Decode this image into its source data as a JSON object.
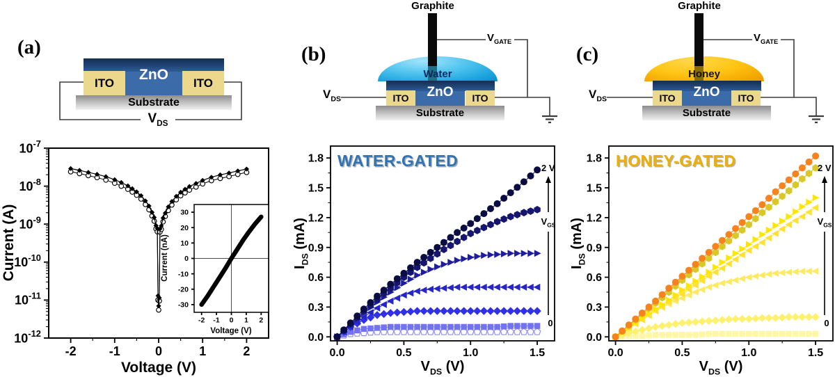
{
  "figure": {
    "panels": [
      {
        "id": "a",
        "label": "(a)"
      },
      {
        "id": "b",
        "label": "(b)"
      },
      {
        "id": "c",
        "label": "(c)"
      }
    ],
    "schematics": {
      "a": {
        "zno": "ZnO",
        "ito_left": "ITO",
        "ito_right": "ITO",
        "substrate": "Substrate",
        "vds": {
          "main": "V",
          "sub": "DS"
        }
      },
      "b": {
        "graphite": "Graphite",
        "liquid": "Water",
        "zno": "ZnO",
        "ito_left": "ITO",
        "ito_right": "ITO",
        "substrate": "Substrate",
        "vds": {
          "main": "V",
          "sub": "DS"
        },
        "vgate": {
          "main": "V",
          "sub": "GATE"
        },
        "liquid_color": "#29a9e0",
        "label_color": "#0a2a5e"
      },
      "c": {
        "graphite": "Graphite",
        "liquid": "Honey",
        "zno": "ZnO",
        "ito_left": "ITO",
        "ito_right": "ITO",
        "substrate": "Substrate",
        "vds": {
          "main": "V",
          "sub": "DS"
        },
        "vgate": {
          "main": "V",
          "sub": "GATE"
        },
        "liquid_color": "#f7b500",
        "label_color": "#171200"
      }
    }
  },
  "chart_data": [
    {
      "id": "a_main",
      "type": "scatter",
      "ylog": true,
      "title": "",
      "xlabel": {
        "main": "Voltage (V)"
      },
      "ylabel": {
        "main": "Current (A)"
      },
      "xlim": [
        -2.5,
        2.5
      ],
      "ylim_exp": [
        -12,
        -7
      ],
      "xticks": [
        {
          "v": -2,
          "t": "-2"
        },
        {
          "v": -1,
          "t": "-1"
        },
        {
          "v": 0,
          "t": "0"
        },
        {
          "v": 1,
          "t": "1"
        },
        {
          "v": 2,
          "t": "2"
        }
      ],
      "yticks_exp": [
        -7,
        -8,
        -9,
        -10,
        -11,
        -12
      ],
      "minor": "mid",
      "grid": false,
      "legend": "none",
      "series": [
        {
          "name": "sweep-1",
          "shape": "diamond",
          "color": "#000000",
          "size": 3.1,
          "lw": 1.2,
          "points": [
            [
              -2,
              2.9e-08
            ],
            [
              -1.8,
              2.6e-08
            ],
            [
              -1.6,
              2.3e-08
            ],
            [
              -1.4,
              2.05e-08
            ],
            [
              -1.2,
              1.78e-08
            ],
            [
              -1.0,
              1.48e-08
            ],
            [
              -0.85,
              1.25e-08
            ],
            [
              -0.7,
              1.02e-08
            ],
            [
              -0.6,
              8.6e-09
            ],
            [
              -0.5,
              7.1e-09
            ],
            [
              -0.4,
              5.6e-09
            ],
            [
              -0.3,
              4.1e-09
            ],
            [
              -0.22,
              3e-09
            ],
            [
              -0.15,
              2.05e-09
            ],
            [
              -0.1,
              1.5e-09
            ],
            [
              -0.06,
              9.2e-10
            ],
            [
              -0.03,
              7.7e-10
            ],
            [
              -0.015,
              1.3e-11
            ],
            [
              0,
              7e-12
            ],
            [
              0.015,
              1.15e-11
            ],
            [
              0.03,
              7.5e-10
            ],
            [
              0.06,
              9e-10
            ],
            [
              0.1,
              1.45e-09
            ],
            [
              0.15,
              1.95e-09
            ],
            [
              0.22,
              2.85e-09
            ],
            [
              0.3,
              3.95e-09
            ],
            [
              0.4,
              5.4e-09
            ],
            [
              0.5,
              6.9e-09
            ],
            [
              0.6,
              8.3e-09
            ],
            [
              0.7,
              9.8e-09
            ],
            [
              0.85,
              1.18e-08
            ],
            [
              1.0,
              1.42e-08
            ],
            [
              1.2,
              1.72e-08
            ],
            [
              1.4,
              1.98e-08
            ],
            [
              1.6,
              2.22e-08
            ],
            [
              1.8,
              2.52e-08
            ],
            [
              2,
              2.82e-08
            ]
          ]
        },
        {
          "name": "sweep-2",
          "shape": "open-circle",
          "color": "#000000",
          "size": 3.3,
          "lw": 1.0,
          "points": [
            [
              -2,
              2.4e-08
            ],
            [
              -1.8,
              2.15e-08
            ],
            [
              -1.6,
              1.9e-08
            ],
            [
              -1.4,
              1.68e-08
            ],
            [
              -1.2,
              1.45e-08
            ],
            [
              -1.0,
              1.2e-08
            ],
            [
              -0.85,
              1e-08
            ],
            [
              -0.7,
              8.3e-09
            ],
            [
              -0.6,
              7e-09
            ],
            [
              -0.5,
              5.8e-09
            ],
            [
              -0.4,
              4.6e-09
            ],
            [
              -0.3,
              3.3e-09
            ],
            [
              -0.22,
              2.4e-09
            ],
            [
              -0.15,
              1.65e-09
            ],
            [
              -0.1,
              1.2e-09
            ],
            [
              -0.06,
              7.5e-10
            ],
            [
              -0.03,
              6.3e-10
            ],
            [
              -0.015,
              1e-11
            ],
            [
              0,
              5.5e-12
            ],
            [
              0.015,
              9.5e-12
            ],
            [
              0.03,
              6.2e-10
            ],
            [
              0.06,
              7.3e-10
            ],
            [
              0.1,
              1.15e-09
            ],
            [
              0.15,
              1.6e-09
            ],
            [
              0.22,
              2.3e-09
            ],
            [
              0.3,
              3.2e-09
            ],
            [
              0.4,
              4.4e-09
            ],
            [
              0.5,
              5.6e-09
            ],
            [
              0.6,
              6.7e-09
            ],
            [
              0.7,
              7.9e-09
            ],
            [
              0.85,
              9.5e-09
            ],
            [
              1.0,
              1.15e-08
            ],
            [
              1.2,
              1.4e-08
            ],
            [
              1.4,
              1.6e-08
            ],
            [
              1.6,
              1.8e-08
            ],
            [
              1.8,
              2.05e-08
            ],
            [
              2,
              2.3e-08
            ]
          ]
        }
      ]
    },
    {
      "id": "a_inset",
      "type": "line",
      "xlabel": {
        "main": "Voltage (V)"
      },
      "ylabel": {
        "main": "Current (nA)"
      },
      "xlim": [
        -2.5,
        2.5
      ],
      "ylim": [
        -35,
        35
      ],
      "xticks": [
        {
          "v": -2,
          "t": "-2"
        },
        {
          "v": -1,
          "t": "-1"
        },
        {
          "v": 0,
          "t": "0"
        },
        {
          "v": 1,
          "t": "1"
        },
        {
          "v": 2,
          "t": "2"
        }
      ],
      "yticks": [
        {
          "v": 30,
          "t": "30"
        },
        {
          "v": 20,
          "t": "20"
        },
        {
          "v": 10,
          "t": "10"
        },
        {
          "v": 0,
          "t": "0"
        },
        {
          "v": -10,
          "t": "-10"
        },
        {
          "v": -20,
          "t": "-20"
        },
        {
          "v": -30,
          "t": "-30"
        }
      ],
      "crosshair": true,
      "grid": false,
      "legend": "none",
      "series": [
        {
          "name": "iv-linear",
          "shape": "none",
          "color": "#000000",
          "lw": 6.5,
          "points": [
            [
              -2,
              -30
            ],
            [
              -1.6,
              -24.5
            ],
            [
              -1.2,
              -18.5
            ],
            [
              -0.8,
              -12.5
            ],
            [
              -0.4,
              -6.5
            ],
            [
              0,
              0
            ],
            [
              0.4,
              6
            ],
            [
              0.8,
              12
            ],
            [
              1.2,
              17.5
            ],
            [
              1.6,
              22.5
            ],
            [
              2,
              27
            ]
          ]
        }
      ]
    },
    {
      "id": "b_out",
      "type": "scatter",
      "title": "WATER-GATED",
      "title_color": "#2e74b5",
      "title_shadow": "#aeaeae",
      "xlabel": {
        "main": "V",
        "sub": "DS",
        "rest": " (V)"
      },
      "ylabel": {
        "main": "I",
        "sub": "DS",
        "rest": " (mA)"
      },
      "xlim": [
        -0.05,
        1.63
      ],
      "ylim": [
        -0.04,
        1.92
      ],
      "xticks": [
        {
          "v": 0,
          "t": "0.0"
        },
        {
          "v": 0.5,
          "t": "0.5"
        },
        {
          "v": 1,
          "t": "1.0"
        },
        {
          "v": 1.5,
          "t": "1.5"
        }
      ],
      "yticks": [
        {
          "v": 0,
          "t": "0.0"
        },
        {
          "v": 0.3,
          "t": "0.3"
        },
        {
          "v": 0.6,
          "t": "0.6"
        },
        {
          "v": 0.9,
          "t": "0.9"
        },
        {
          "v": 1.2,
          "t": "1.2"
        },
        {
          "v": 1.5,
          "t": "1.5"
        },
        {
          "v": 1.8,
          "t": "1.8"
        }
      ],
      "minor": "mid",
      "grid": false,
      "legend": "none",
      "gate": {
        "top": "2 V",
        "bottom": "0",
        "vmain": "V",
        "vsub": "GS"
      },
      "x_start": 0,
      "x_step": 0.1,
      "series": [
        {
          "name": "vgs-highest-2V",
          "shape": "circle",
          "color": "#0c0c45",
          "dense": true,
          "values": [
            0.0,
            0.14,
            0.28,
            0.41,
            0.53,
            0.64,
            0.75,
            0.85,
            0.95,
            1.05,
            1.14,
            1.24,
            1.34,
            1.45,
            1.56,
            1.68
          ]
        },
        {
          "name": "vgs-step-6",
          "shape": "hexagon",
          "color": "#16166e",
          "dense": true,
          "values": [
            0.0,
            0.13,
            0.26,
            0.38,
            0.49,
            0.6,
            0.7,
            0.79,
            0.88,
            0.96,
            1.04,
            1.1,
            1.16,
            1.21,
            1.25,
            1.28
          ]
        },
        {
          "name": "vgs-step-5",
          "shape": "tri-right",
          "color": "#1d1d9e",
          "dense": true,
          "values": [
            0.0,
            0.12,
            0.24,
            0.35,
            0.45,
            0.54,
            0.62,
            0.68,
            0.73,
            0.77,
            0.8,
            0.82,
            0.83,
            0.84,
            0.84,
            0.84
          ]
        },
        {
          "name": "vgs-step-4",
          "shape": "tri-left",
          "color": "#2626c8",
          "dense": true,
          "values": [
            0.0,
            0.1,
            0.2,
            0.29,
            0.36,
            0.42,
            0.46,
            0.48,
            0.49,
            0.5,
            0.5,
            0.5,
            0.5,
            0.5,
            0.5,
            0.5
          ]
        },
        {
          "name": "vgs-step-3",
          "shape": "diamond",
          "color": "#3030e8",
          "dense": true,
          "values": [
            0.0,
            0.1,
            0.17,
            0.22,
            0.24,
            0.25,
            0.26,
            0.26,
            0.26,
            0.26,
            0.26,
            0.26,
            0.26,
            0.26,
            0.26,
            0.26
          ]
        },
        {
          "name": "vgs-step-2",
          "shape": "square",
          "color": "#7272f2",
          "dense": true,
          "values": [
            0.0,
            0.05,
            0.08,
            0.09,
            0.1,
            0.1,
            0.1,
            0.1,
            0.1,
            0.1,
            0.1,
            0.1,
            0.1,
            0.11,
            0.11,
            0.11
          ]
        },
        {
          "name": "vgs-lowest-0",
          "shape": "pentagon",
          "color": "#ffffff",
          "edge": "#8f8fe8",
          "dense": true,
          "values": [
            0.0,
            0.03,
            0.04,
            0.05,
            0.05,
            0.05,
            0.05,
            0.05,
            0.05,
            0.05,
            0.05,
            0.05,
            0.05,
            0.05,
            0.05,
            0.05
          ]
        }
      ]
    },
    {
      "id": "c_out",
      "type": "scatter",
      "title": "HONEY-GATED",
      "title_color": "#efae00",
      "title_shadow": "#b4b4b4",
      "xlabel": {
        "main": "V",
        "sub": "DS",
        "rest": " (V)"
      },
      "ylabel": {
        "main": "I",
        "sub": "DS",
        "rest": " (mA)"
      },
      "xlim": [
        -0.05,
        1.63
      ],
      "ylim": [
        -0.04,
        1.92
      ],
      "xticks": [
        {
          "v": 0,
          "t": "0.0"
        },
        {
          "v": 0.5,
          "t": "0.5"
        },
        {
          "v": 1,
          "t": "1.0"
        },
        {
          "v": 1.5,
          "t": "1.5"
        }
      ],
      "yticks": [
        {
          "v": 0,
          "t": "0.0"
        },
        {
          "v": 0.3,
          "t": "0.3"
        },
        {
          "v": 0.6,
          "t": "0.6"
        },
        {
          "v": 0.9,
          "t": "0.9"
        },
        {
          "v": 1.2,
          "t": "1.2"
        },
        {
          "v": 1.5,
          "t": "1.5"
        },
        {
          "v": 1.8,
          "t": "1.8"
        }
      ],
      "minor": "mid",
      "grid": false,
      "legend": "none",
      "gate": {
        "top": "2 V",
        "bottom": "0",
        "vmain": "V",
        "vsub": "GS"
      },
      "x_start": 0,
      "x_step": 0.1,
      "series": [
        {
          "name": "vgs-highest-2V",
          "shape": "circle",
          "color": "#f8821c",
          "dense": true,
          "values": [
            0.0,
            0.12,
            0.24,
            0.36,
            0.49,
            0.61,
            0.73,
            0.85,
            0.97,
            1.09,
            1.21,
            1.33,
            1.46,
            1.58,
            1.7,
            1.82
          ]
        },
        {
          "name": "vgs-step-6",
          "shape": "hexagon",
          "color": "#d8c928",
          "dense": true,
          "values": [
            0.0,
            0.11,
            0.23,
            0.34,
            0.45,
            0.57,
            0.68,
            0.79,
            0.91,
            1.02,
            1.13,
            1.25,
            1.36,
            1.47,
            1.59,
            1.7
          ]
        },
        {
          "name": "vgs-step-5",
          "shape": "tri-right",
          "color": "#ffe600",
          "dense": true,
          "values": [
            0.0,
            0.09,
            0.19,
            0.28,
            0.37,
            0.47,
            0.56,
            0.65,
            0.75,
            0.84,
            0.93,
            1.03,
            1.12,
            1.21,
            1.31,
            1.4
          ]
        },
        {
          "name": "vgs-step-4",
          "shape": "tri-left",
          "color": "#ffe133",
          "dense": true,
          "values": [
            0.0,
            0.09,
            0.17,
            0.26,
            0.35,
            0.43,
            0.52,
            0.61,
            0.69,
            0.78,
            0.87,
            0.95,
            1.04,
            1.13,
            1.21,
            1.3
          ]
        },
        {
          "name": "vgs-step-3",
          "shape": "tri-left",
          "color": "#ffe95e",
          "dense": true,
          "values": [
            0.0,
            0.09,
            0.18,
            0.26,
            0.33,
            0.39,
            0.45,
            0.5,
            0.54,
            0.57,
            0.6,
            0.62,
            0.64,
            0.65,
            0.66,
            0.66
          ]
        },
        {
          "name": "vgs-step-2",
          "shape": "diamond",
          "color": "#fff06e",
          "dense": true,
          "values": [
            0.0,
            0.04,
            0.07,
            0.1,
            0.12,
            0.14,
            0.15,
            0.16,
            0.17,
            0.18,
            0.18,
            0.19,
            0.19,
            0.2,
            0.2,
            0.2
          ]
        },
        {
          "name": "vgs-lowest-0",
          "shape": "square",
          "color": "#fff7a3",
          "dense": true,
          "values": [
            0.0,
            0.01,
            0.01,
            0.02,
            0.02,
            0.02,
            0.02,
            0.03,
            0.03,
            0.03,
            0.03,
            0.03,
            0.03,
            0.03,
            0.03,
            0.03
          ]
        }
      ]
    }
  ]
}
